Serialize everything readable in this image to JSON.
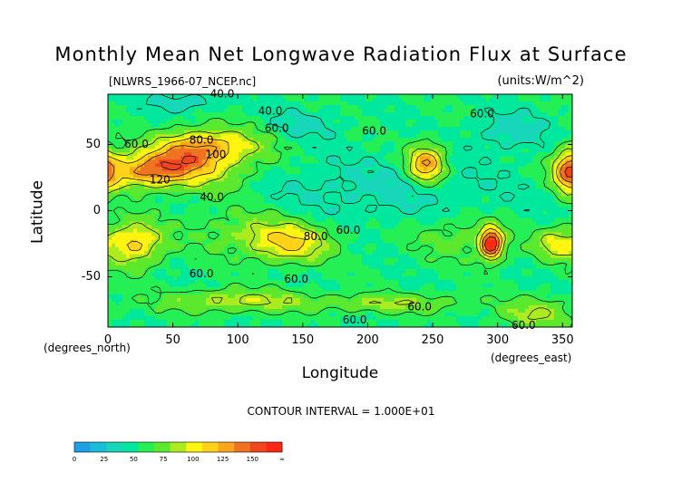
{
  "chart_data": {
    "type": "heatmap",
    "title": "Monthly Mean Net Longwave Radiation Flux at Surface",
    "source_label": "[NLWRS_1966-07_NCEP.nc]",
    "units_label": "(units:W/m^2)",
    "xlabel": "Longitude",
    "ylabel": "Latitude",
    "x_units": "(degrees_east)",
    "y_units": "(degrees_north)",
    "xlim": [
      0,
      357.5
    ],
    "ylim": [
      -88,
      88
    ],
    "x_ticks": [
      0,
      50,
      100,
      150,
      200,
      250,
      300,
      350
    ],
    "y_ticks": [
      50,
      0,
      -50
    ],
    "contour_interval": "CONTOUR INTERVAL = 1.000E+01",
    "contour_labels": [
      {
        "text": "40.0",
        "x": 88,
        "y": 88
      },
      {
        "text": "40.0",
        "x": 125,
        "y": 75
      },
      {
        "text": "60.0",
        "x": 22,
        "y": 50
      },
      {
        "text": "80.0",
        "x": 72,
        "y": 53
      },
      {
        "text": "60.0",
        "x": 130,
        "y": 62
      },
      {
        "text": "100",
        "x": 83,
        "y": 42
      },
      {
        "text": "120",
        "x": 40,
        "y": 23
      },
      {
        "text": "40.0",
        "x": 80,
        "y": 10
      },
      {
        "text": "80.0",
        "x": 160,
        "y": -20
      },
      {
        "text": "60.0",
        "x": 185,
        "y": -15
      },
      {
        "text": "60.0",
        "x": 205,
        "y": 60
      },
      {
        "text": "60.0",
        "x": 288,
        "y": 73
      },
      {
        "text": "60.0",
        "x": 72,
        "y": -48
      },
      {
        "text": "60.0",
        "x": 145,
        "y": -52
      },
      {
        "text": "60.0",
        "x": 240,
        "y": -73
      },
      {
        "text": "60.0",
        "x": 190,
        "y": -83
      },
      {
        "text": "60.0",
        "x": 320,
        "y": -87
      }
    ],
    "colorbar": {
      "labels": [
        "0",
        "25",
        "50",
        "75",
        "100",
        "125",
        "150",
        "∞"
      ],
      "levels": [
        0,
        12.5,
        25,
        37.5,
        50,
        62.5,
        75,
        87.5,
        100,
        112.5,
        125,
        137.5,
        150,
        175
      ],
      "colors": [
        "#1E9FE6",
        "#19BDD7",
        "#18D6B9",
        "#00E89D",
        "#24F055",
        "#5CE82D",
        "#ADEB21",
        "#FFF510",
        "#FFD21A",
        "#F9A71A",
        "#F07322",
        "#F0461E",
        "#FF2814"
      ]
    },
    "field_features": [
      {
        "x": 30,
        "y": 30,
        "sx": 25,
        "sy": 9,
        "amp": 70
      },
      {
        "x": 80,
        "y": 50,
        "sx": 28,
        "sy": 9,
        "amp": 45
      },
      {
        "x": 60,
        "y": 40,
        "sx": 20,
        "sy": 10,
        "amp": 40
      },
      {
        "x": 245,
        "y": 35,
        "sx": 10,
        "sy": 10,
        "amp": 75
      },
      {
        "x": 355,
        "y": 30,
        "sx": 8,
        "sy": 12,
        "amp": 70
      },
      {
        "x": 20,
        "y": -25,
        "sx": 15,
        "sy": 12,
        "amp": 55
      },
      {
        "x": 140,
        "y": -25,
        "sx": 22,
        "sy": 10,
        "amp": 45
      },
      {
        "x": 295,
        "y": -25,
        "sx": 6,
        "sy": 8,
        "amp": 110
      },
      {
        "x": 345,
        "y": -25,
        "sx": 12,
        "sy": 8,
        "amp": 40
      },
      {
        "x": 270,
        "y": -20,
        "sx": 25,
        "sy": 12,
        "amp": 20
      },
      {
        "x": 85,
        "y": 30,
        "sx": 30,
        "sy": 15,
        "amp": 22
      },
      {
        "x": 110,
        "y": -15,
        "sx": 35,
        "sy": 12,
        "amp": 22
      },
      {
        "x": 100,
        "y": -68,
        "sx": 40,
        "sy": 6,
        "amp": 35
      },
      {
        "x": 220,
        "y": -70,
        "sx": 40,
        "sy": 5,
        "amp": 28
      },
      {
        "x": 330,
        "y": -78,
        "sx": 20,
        "sy": 8,
        "amp": 30
      },
      {
        "x": 200,
        "y": 15,
        "sx": 80,
        "sy": 18,
        "amp": -15
      },
      {
        "x": 310,
        "y": 60,
        "sx": 20,
        "sy": 10,
        "amp": -20
      },
      {
        "x": 150,
        "y": 65,
        "sx": 20,
        "sy": 8,
        "amp": -15
      },
      {
        "x": 60,
        "y": 82,
        "sx": 20,
        "sy": 5,
        "amp": -20
      }
    ],
    "field_base": 50,
    "grid": false
  }
}
